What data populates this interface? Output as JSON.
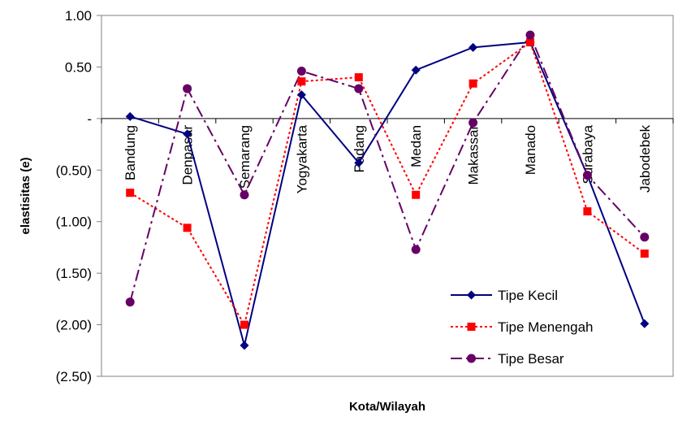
{
  "chart_data": {
    "type": "line",
    "title": "",
    "xlabel": "Kota/Wilayah",
    "ylabel": "elastisitas (e)",
    "ylim": [
      -2.5,
      1.0
    ],
    "yticks": [
      1.0,
      0.5,
      0,
      -0.5,
      -1.0,
      -1.5,
      -2.0,
      -2.5
    ],
    "ytick_labels": [
      "1.00",
      "0.50",
      "-",
      "(0.50)",
      "(1.00)",
      "(1.50)",
      "(2.00)",
      "(2.50)"
    ],
    "categories": [
      "Bandung",
      "Denpasar",
      "Semarang",
      "Yogyakarta",
      "Padang",
      "Medan",
      "Makassar",
      "Manado",
      "Surabaya",
      "Jabodebek"
    ],
    "grid": false,
    "legend_position": "bottom-right",
    "series": [
      {
        "name": "Tipe Kecil",
        "color": "#000080",
        "marker": "diamond",
        "line_style": "solid",
        "values": [
          0.02,
          -0.15,
          -2.2,
          0.23,
          -0.43,
          0.47,
          0.69,
          0.74,
          -0.55,
          -1.99
        ]
      },
      {
        "name": "Tipe Menengah",
        "color": "#ff0000",
        "marker": "square",
        "line_style": "dotted",
        "values": [
          -0.72,
          -1.06,
          -2.0,
          0.36,
          0.4,
          -0.74,
          0.34,
          0.74,
          -0.9,
          -1.31
        ]
      },
      {
        "name": "Tipe Besar",
        "color": "#660066",
        "marker": "circle",
        "line_style": "dashdot",
        "values": [
          -1.78,
          0.29,
          -0.74,
          0.46,
          0.29,
          -1.27,
          -0.04,
          0.81,
          -0.55,
          -1.15
        ]
      }
    ]
  }
}
